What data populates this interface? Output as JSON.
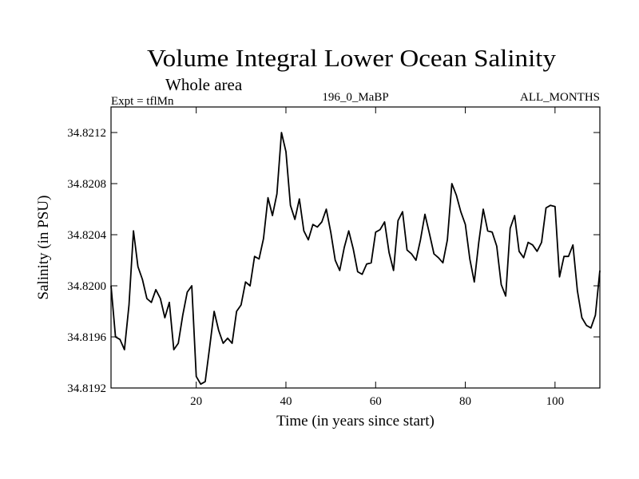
{
  "chart_data": {
    "type": "line",
    "title": "Volume Integral Lower Ocean Salinity",
    "subtitle": "Whole area",
    "left_info": "Expt = tflMn",
    "center_info": "196_0_MaBP",
    "right_info": "ALL_MONTHS",
    "xlabel": "Time (in years since start)",
    "ylabel": "Salinity (in PSU)",
    "xlim": [
      1,
      110
    ],
    "ylim": [
      34.8192,
      34.8214
    ],
    "x_ticks": [
      20,
      40,
      60,
      80,
      100
    ],
    "x_tick_labels": [
      "20",
      "40",
      "60",
      "80",
      "100"
    ],
    "y_ticks": [
      34.8192,
      34.8196,
      34.82,
      34.8204,
      34.8208,
      34.8212
    ],
    "y_tick_labels": [
      "34.8192",
      "34.8196",
      "34.8200",
      "34.8204",
      "34.8208",
      "34.8212"
    ],
    "series": [
      {
        "name": "salinity",
        "x": [
          1,
          2,
          3,
          4,
          5,
          6,
          7,
          8,
          9,
          10,
          11,
          12,
          13,
          14,
          15,
          16,
          17,
          18,
          19,
          20,
          21,
          22,
          23,
          24,
          25,
          26,
          27,
          28,
          29,
          30,
          31,
          32,
          33,
          34,
          35,
          36,
          37,
          38,
          39,
          40,
          41,
          42,
          43,
          44,
          45,
          46,
          47,
          48,
          49,
          50,
          51,
          52,
          53,
          54,
          55,
          56,
          57,
          58,
          59,
          60,
          61,
          62,
          63,
          64,
          65,
          66,
          67,
          68,
          69,
          70,
          71,
          72,
          73,
          74,
          75,
          76,
          77,
          78,
          79,
          80,
          81,
          82,
          83,
          84,
          85,
          86,
          87,
          88,
          89,
          90,
          91,
          92,
          93,
          94,
          95,
          96,
          97,
          98,
          99,
          100,
          101,
          102,
          103,
          104,
          105,
          106,
          107,
          108,
          109,
          110
        ],
        "values": [
          34.82,
          34.8196,
          34.81958,
          34.8195,
          34.81985,
          34.82043,
          34.82015,
          34.82005,
          34.8199,
          34.81987,
          34.81997,
          34.8199,
          34.81975,
          34.81987,
          34.8195,
          34.81955,
          34.81977,
          34.81995,
          34.82,
          34.81929,
          34.81923,
          34.81925,
          34.81952,
          34.8198,
          34.81965,
          34.81955,
          34.81959,
          34.81955,
          34.8198,
          34.81985,
          34.82003,
          34.82,
          34.82023,
          34.82021,
          34.82037,
          34.82069,
          34.82055,
          34.82072,
          34.8212,
          34.82105,
          34.82063,
          34.82052,
          34.82068,
          34.82043,
          34.82036,
          34.82048,
          34.82046,
          34.8205,
          34.8206,
          34.82042,
          34.8202,
          34.82012,
          34.8203,
          34.82043,
          34.82029,
          34.82011,
          34.82009,
          34.82017,
          34.82018,
          34.82042,
          34.82044,
          34.8205,
          34.82026,
          34.82012,
          34.82051,
          34.82058,
          34.82028,
          34.82025,
          34.8202,
          34.82036,
          34.82056,
          34.82041,
          34.82025,
          34.82022,
          34.82018,
          34.82036,
          34.8208,
          34.82071,
          34.82058,
          34.82048,
          34.82021,
          34.82003,
          34.82034,
          34.8206,
          34.82043,
          34.82042,
          34.82031,
          34.82001,
          34.81992,
          34.82045,
          34.82055,
          34.82027,
          34.82022,
          34.82034,
          34.82032,
          34.82027,
          34.82034,
          34.82061,
          34.82063,
          34.82062,
          34.82007,
          34.82023,
          34.82023,
          34.82032,
          34.81996,
          34.81975,
          34.81969,
          34.81967,
          34.81977,
          34.82012
        ]
      }
    ]
  }
}
